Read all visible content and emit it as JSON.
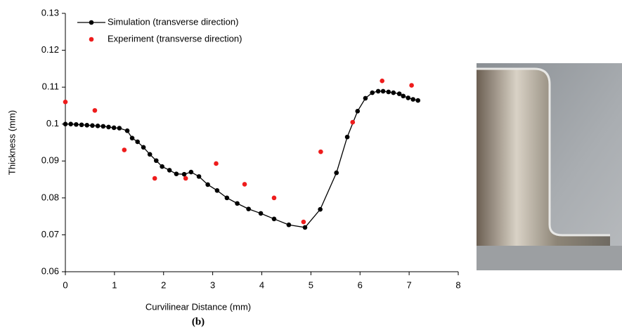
{
  "chart_data": {
    "type": "line",
    "caption": "(b)",
    "x_label": "Curvilinear Distance (mm)",
    "y_label": "Thickness (mm)",
    "xlim": [
      0,
      8
    ],
    "xticks": [
      0,
      1,
      2,
      3,
      4,
      5,
      6,
      7,
      8
    ],
    "ylim": [
      0.06,
      0.13
    ],
    "yticks": [
      0.06,
      0.07,
      0.08,
      0.09,
      0.1,
      0.11,
      0.12,
      0.13
    ],
    "legend": "top-left",
    "series": [
      {
        "name": "Simulation (transverse direction)",
        "color": "#000000",
        "line": true,
        "x": [
          0,
          0.11,
          0.22,
          0.33,
          0.44,
          0.55,
          0.66,
          0.77,
          0.88,
          0.99,
          1.1,
          1.26,
          1.36,
          1.47,
          1.59,
          1.72,
          1.85,
          1.97,
          2.12,
          2.26,
          2.42,
          2.56,
          2.72,
          2.9,
          3.09,
          3.29,
          3.5,
          3.73,
          3.98,
          4.25,
          4.55,
          4.88,
          5.19,
          5.52,
          5.74,
          5.95,
          6.11,
          6.25,
          6.37,
          6.47,
          6.58,
          6.68,
          6.8,
          6.88,
          6.98,
          7.08,
          7.18
        ],
        "values": [
          0.1,
          0.1,
          0.0999,
          0.0998,
          0.0997,
          0.0996,
          0.0995,
          0.0994,
          0.0992,
          0.099,
          0.0989,
          0.0982,
          0.0962,
          0.0952,
          0.0937,
          0.0918,
          0.0901,
          0.0885,
          0.0875,
          0.0865,
          0.0864,
          0.087,
          0.0858,
          0.0836,
          0.082,
          0.08,
          0.0785,
          0.077,
          0.0758,
          0.0743,
          0.0727,
          0.072,
          0.0769,
          0.0868,
          0.0965,
          0.1035,
          0.107,
          0.1085,
          0.1089,
          0.1089,
          0.1087,
          0.1085,
          0.1082,
          0.1076,
          0.1071,
          0.1067,
          0.1064
        ]
      },
      {
        "name": "Experiment (transverse direction)",
        "color": "#ee1c1c",
        "line": false,
        "x": [
          0,
          0.6,
          1.2,
          1.82,
          2.45,
          3.07,
          3.65,
          4.25,
          4.85,
          5.2,
          5.85,
          6.45,
          7.05
        ],
        "values": [
          0.106,
          0.1037,
          0.093,
          0.0853,
          0.0853,
          0.0893,
          0.0837,
          0.08,
          0.0735,
          0.0925,
          0.1005,
          0.1117,
          0.1105
        ]
      }
    ]
  }
}
